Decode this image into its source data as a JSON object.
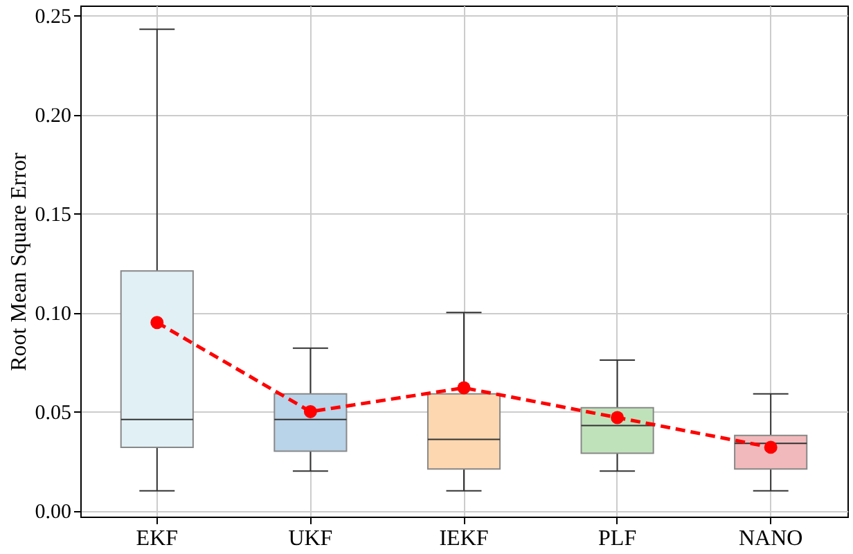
{
  "chart_data": {
    "type": "box",
    "ylabel": "Root Mean Square Error",
    "categories": [
      "EKF",
      "UKF",
      "IEKF",
      "PLF",
      "NANO"
    ],
    "ylim": [
      -0.003,
      0.255
    ],
    "yticks": [
      {
        "value": 0,
        "label": "0.00"
      },
      {
        "value": 0.05,
        "label": "0.05"
      },
      {
        "value": 0.1,
        "label": "0.10"
      },
      {
        "value": 0.15,
        "label": "0.15"
      },
      {
        "value": 0.2,
        "label": "0.20"
      },
      {
        "value": 0.25,
        "label": "0.25"
      }
    ],
    "grid": true,
    "marker": "circle",
    "line_style": "dashed",
    "series": [
      {
        "type": "box",
        "colors": [
          "#e0f0f5",
          "#b9d3e8",
          "#fdd7b0",
          "#c0e2bb",
          "#f1b9bb"
        ],
        "boxes": [
          {
            "low": 0.01,
            "q1": 0.032,
            "median": 0.046,
            "q3": 0.121,
            "high": 0.243
          },
          {
            "low": 0.02,
            "q1": 0.03,
            "median": 0.046,
            "q3": 0.059,
            "high": 0.082
          },
          {
            "low": 0.01,
            "q1": 0.021,
            "median": 0.036,
            "q3": 0.059,
            "high": 0.1
          },
          {
            "low": 0.02,
            "q1": 0.029,
            "median": 0.043,
            "q3": 0.052,
            "high": 0.076
          },
          {
            "low": 0.01,
            "q1": 0.021,
            "median": 0.034,
            "q3": 0.038,
            "high": 0.059
          }
        ]
      },
      {
        "type": "line",
        "color": "#ff0000",
        "values": [
          0.095,
          0.05,
          0.062,
          0.047,
          0.032
        ]
      }
    ]
  }
}
